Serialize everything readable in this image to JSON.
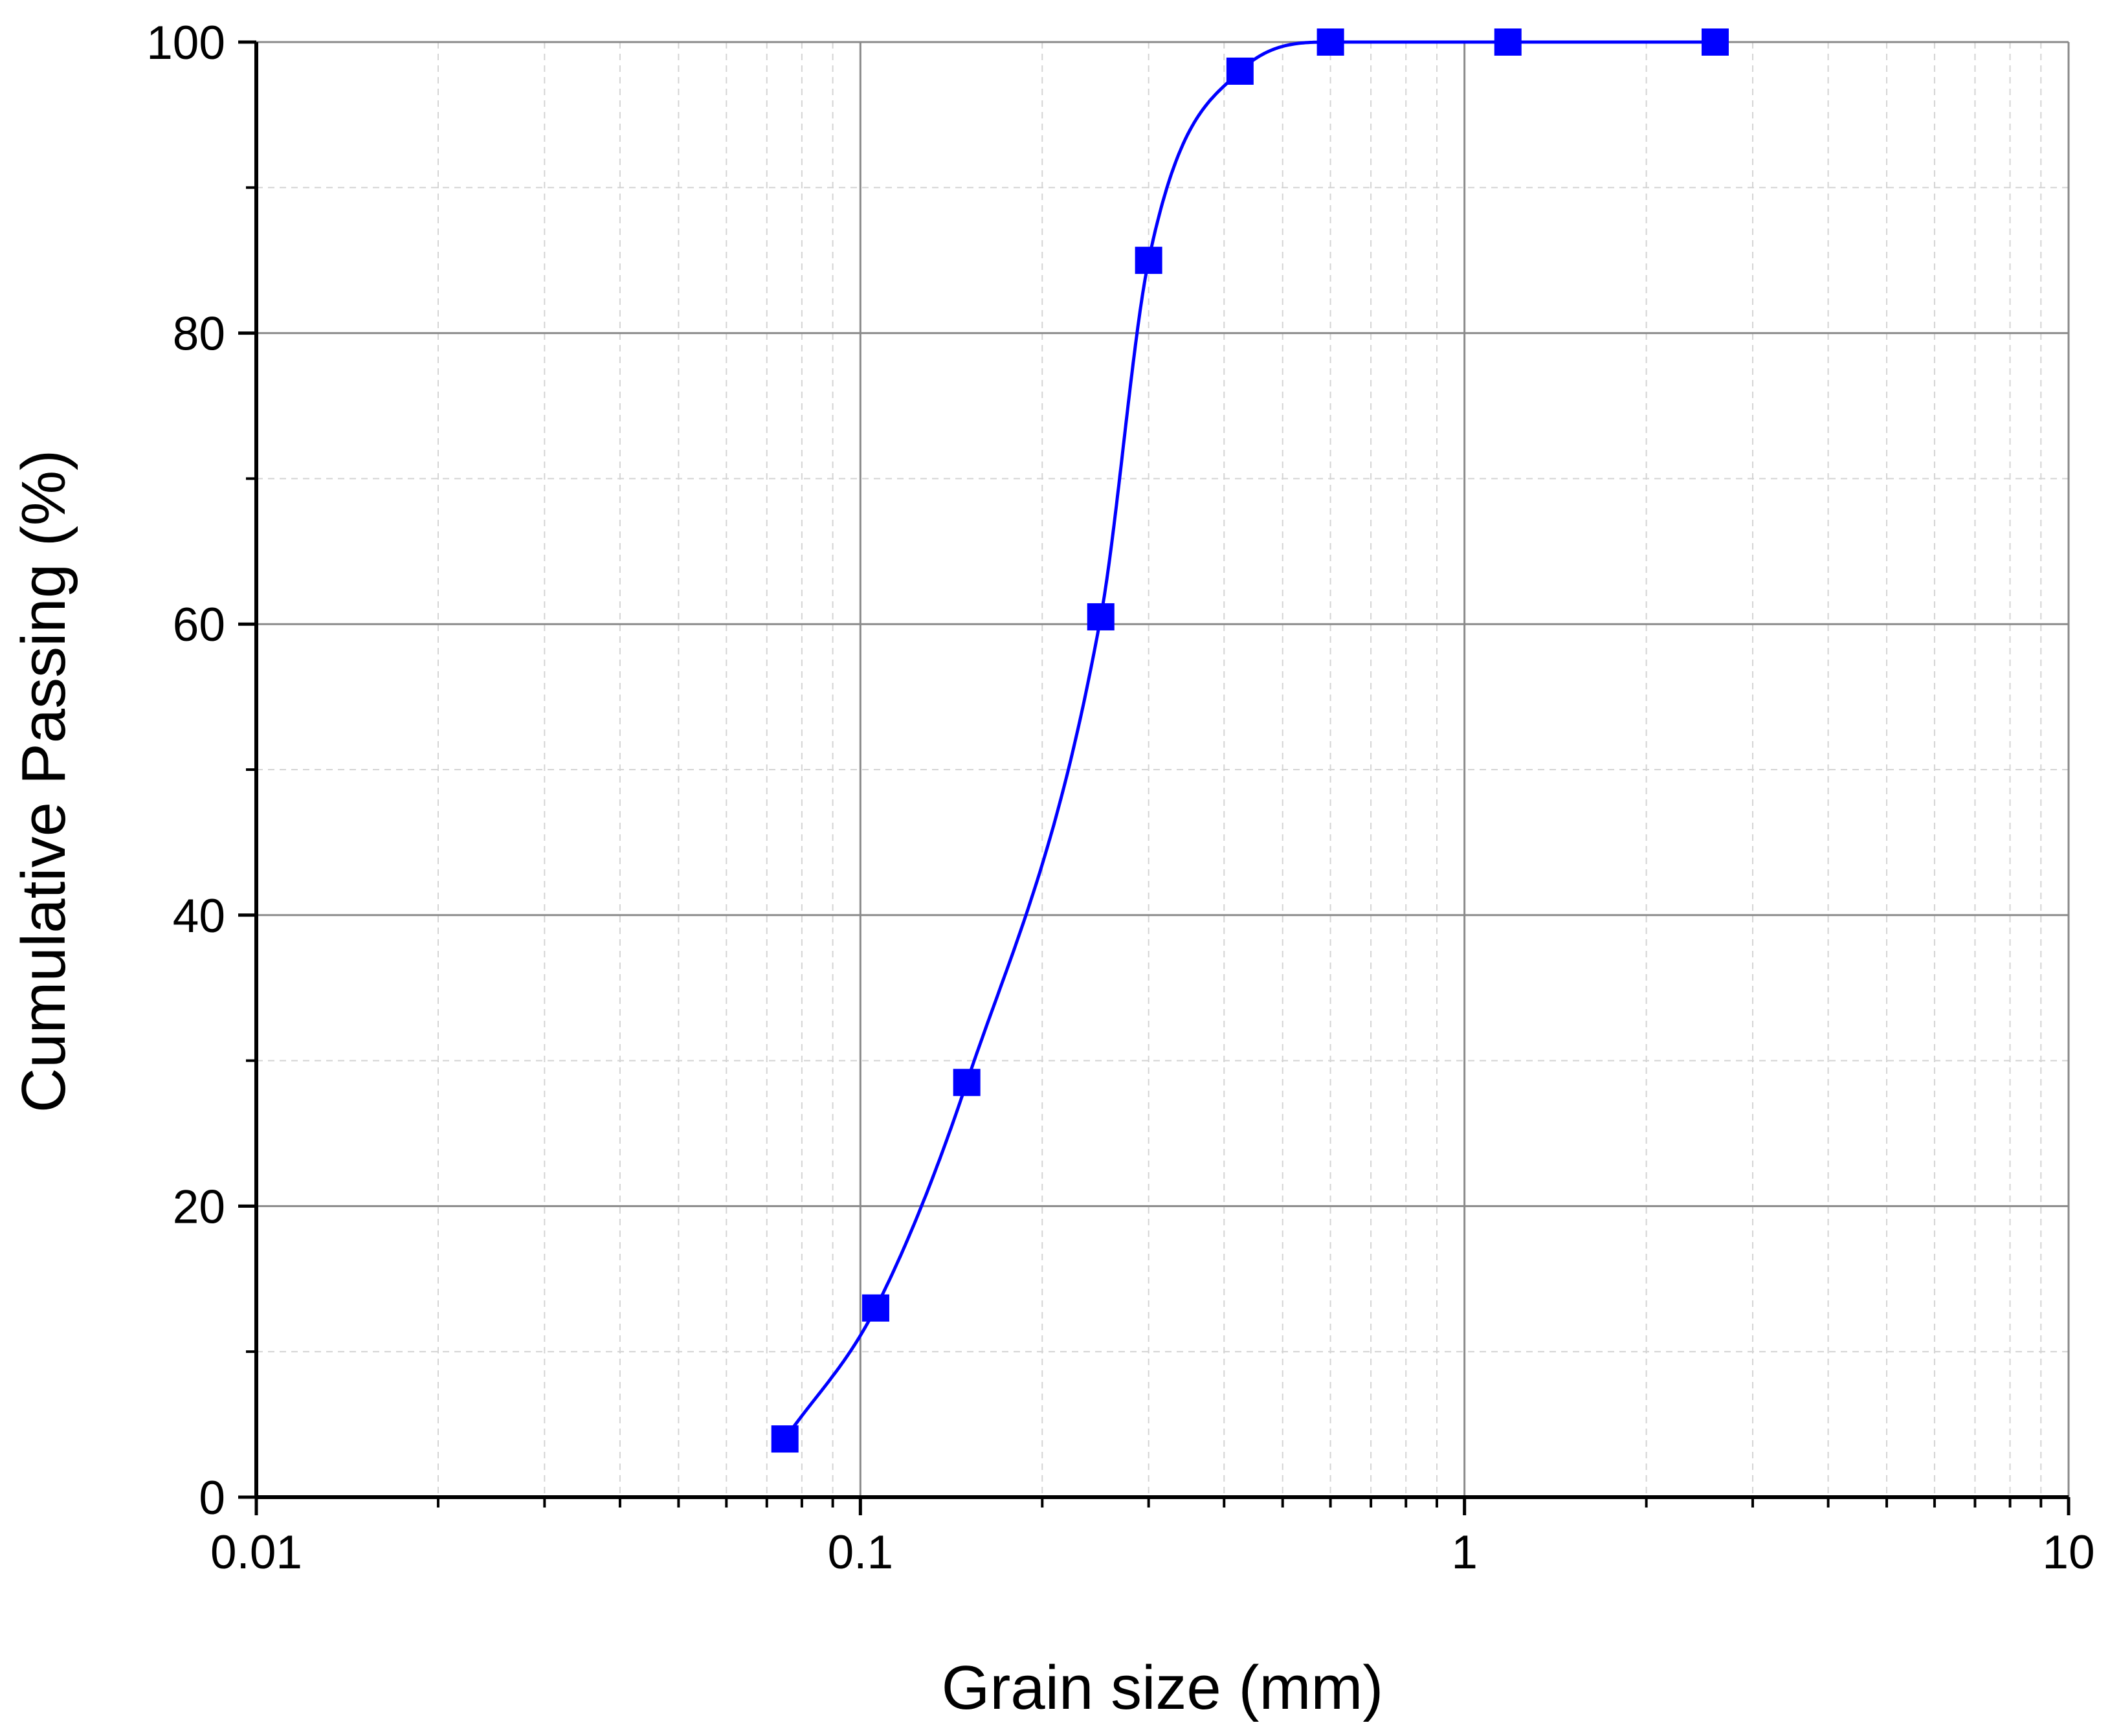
{
  "chart_data": {
    "type": "scatter",
    "xlabel": "Grain size (mm)",
    "ylabel": "Cumulative Passing (%)",
    "x_scale": "log",
    "xlim": [
      0.01,
      10
    ],
    "ylim": [
      0,
      100
    ],
    "x_ticks": [
      "0.01",
      "0.1",
      "1",
      "10"
    ],
    "y_ticks": [
      "0",
      "20",
      "40",
      "60",
      "80",
      "100"
    ],
    "grid": true,
    "color": "#0000ff",
    "series": [
      {
        "x": [
          0.075,
          0.106,
          0.15,
          0.25,
          0.3,
          0.425,
          0.6,
          1.18,
          2.6
        ],
        "y": [
          4.0,
          13.0,
          28.5,
          60.5,
          85.0,
          98.0,
          100.0,
          100.0,
          100.0
        ],
        "marker": "square",
        "fitted_curve": true
      }
    ]
  }
}
